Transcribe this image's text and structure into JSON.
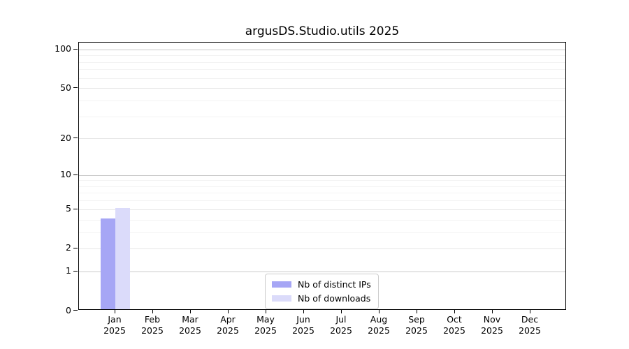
{
  "chart_data": {
    "type": "bar",
    "title": "argusDS.Studio.utils 2025",
    "categories": [
      {
        "label": "Jan",
        "sub": "2025"
      },
      {
        "label": "Feb",
        "sub": "2025"
      },
      {
        "label": "Mar",
        "sub": "2025"
      },
      {
        "label": "Apr",
        "sub": "2025"
      },
      {
        "label": "May",
        "sub": "2025"
      },
      {
        "label": "Jun",
        "sub": "2025"
      },
      {
        "label": "Jul",
        "sub": "2025"
      },
      {
        "label": "Aug",
        "sub": "2025"
      },
      {
        "label": "Sep",
        "sub": "2025"
      },
      {
        "label": "Oct",
        "sub": "2025"
      },
      {
        "label": "Nov",
        "sub": "2025"
      },
      {
        "label": "Dec",
        "sub": "2025"
      }
    ],
    "series": [
      {
        "name": "Nb of distinct IPs",
        "color": "#a6a6f5",
        "values": [
          4,
          0,
          0,
          0,
          0,
          0,
          0,
          0,
          0,
          0,
          0,
          0
        ]
      },
      {
        "name": "Nb of downloads",
        "color": "#dbdbfa",
        "values": [
          5,
          0,
          0,
          0,
          0,
          0,
          0,
          0,
          0,
          0,
          0,
          0
        ]
      }
    ],
    "xlabel": "",
    "ylabel": "",
    "yscale": "log1p",
    "ylim": [
      0,
      113
    ],
    "yticks": [
      0,
      1,
      2,
      5,
      10,
      20,
      50,
      100
    ],
    "minor_yticks": [
      3,
      4,
      6,
      7,
      8,
      9,
      30,
      40,
      60,
      70,
      80,
      90
    ],
    "grid": {
      "on": true,
      "decades": [
        1,
        10,
        100
      ],
      "decade_color": "#c9c9c9",
      "labeled_color": "#e6e6e6",
      "minor_color": "#f3f3f3"
    },
    "legend": {
      "position": "lower center",
      "border_color": "#cccccc"
    },
    "axis_color": "#000000"
  }
}
